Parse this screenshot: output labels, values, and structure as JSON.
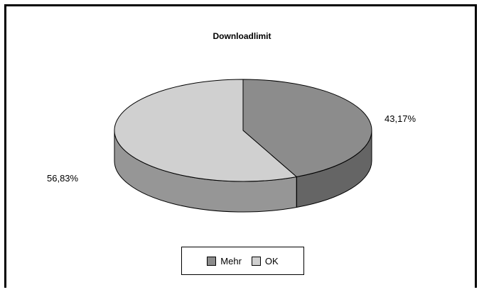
{
  "chart_data": {
    "type": "pie",
    "style": "3d",
    "title": "Downloadlimit",
    "categories": [
      "Mehr",
      "OK"
    ],
    "values": [
      43.17,
      56.83
    ],
    "data_labels": [
      "43,17%",
      "56,83%"
    ],
    "colors": [
      "#8c8c8c",
      "#d0d0d0"
    ],
    "legend": {
      "position": "bottom",
      "labels": [
        "Mehr",
        "OK"
      ]
    }
  }
}
